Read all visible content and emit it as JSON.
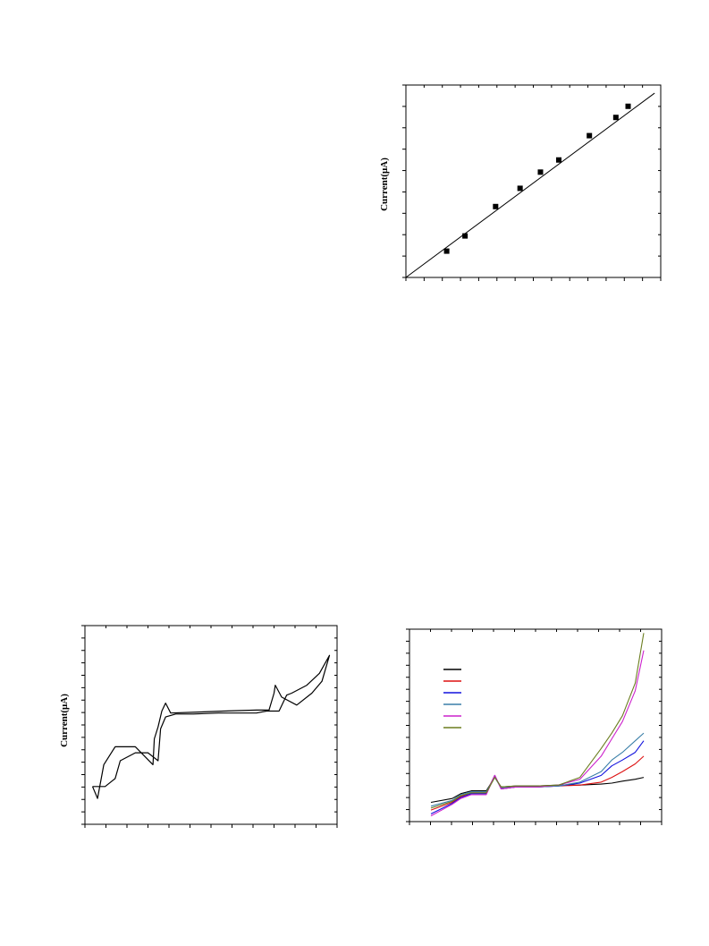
{
  "chart_data": [
    {
      "type": "scatter",
      "title": "",
      "xlabel": "",
      "ylabel": "Current(μA)",
      "xlim": [
        0,
        12.5
      ],
      "ylim": [
        0,
        9.5
      ],
      "grid": false,
      "points": {
        "x": [
          2,
          2.9,
          4.4,
          5.6,
          6.6,
          7.5,
          9,
          10.3,
          10.9
        ],
        "y": [
          1.3,
          2.05,
          3.5,
          4.4,
          5.2,
          5.8,
          7,
          7.9,
          8.45
        ]
      },
      "fit_line": {
        "x": [
          0,
          12.2
        ],
        "y": [
          0,
          9.1
        ]
      },
      "marker_color": "#000000"
    },
    {
      "type": "line",
      "title": "",
      "xlabel": "",
      "ylabel": "Current(μA)",
      "xlim": [
        0,
        10
      ],
      "ylim": [
        0,
        10
      ],
      "grid": false,
      "series": [
        {
          "color": "#000000",
          "forward": {
            "x": [
              0.3,
              0.8,
              1.2,
              1.4,
              2.0,
              2.5,
              2.9,
              3.0,
              3.2,
              3.6,
              3.85,
              4.3,
              5.3,
              6.5,
              6.8,
              7.2,
              7.7,
              8.0,
              8.2,
              8.8,
              9.3,
              9.7
            ],
            "y": [
              1.9,
              1.9,
              2.3,
              3.2,
              3.6,
              3.6,
              3.2,
              4.8,
              5.4,
              5.55,
              5.55,
              5.55,
              5.6,
              5.6,
              5.6,
              5.7,
              5.7,
              6.5,
              6.6,
              7.0,
              7.6,
              8.5
            ]
          },
          "reverse": {
            "x": [
              9.7,
              9.4,
              9.0,
              8.4,
              7.8,
              7.55,
              7.5,
              7.3,
              6.8,
              5.5,
              4.5,
              3.4,
              3.2,
              3.05,
              2.9,
              2.75,
              2.7,
              2.0,
              1.2,
              0.75,
              0.5,
              0.3
            ],
            "y": [
              8.5,
              7.2,
              6.6,
              6.0,
              6.4,
              7.0,
              6.6,
              5.75,
              5.75,
              5.7,
              5.65,
              5.6,
              6.1,
              5.7,
              4.9,
              4.3,
              3.0,
              3.9,
              3.9,
              3.0,
              1.3,
              1.9
            ]
          }
        }
      ]
    },
    {
      "type": "line",
      "title": "",
      "xlabel": "",
      "ylabel": "",
      "xlim": [
        0,
        10
      ],
      "ylim": [
        0,
        10
      ],
      "grid": false,
      "legend": "top-left",
      "series": [
        {
          "color": "#000000",
          "x": [
            0,
            1,
            1.4,
            1.9,
            2.6,
            3.0,
            3.3,
            4,
            5,
            6,
            7,
            8,
            8.5,
            9,
            9.6,
            10
          ],
          "y": [
            1.0,
            1.2,
            1.45,
            1.6,
            1.6,
            2.3,
            1.8,
            1.85,
            1.85,
            1.9,
            1.9,
            1.95,
            2.0,
            2.1,
            2.2,
            2.3
          ]
        },
        {
          "color": "#dd1111",
          "x": [
            0,
            1,
            1.4,
            1.9,
            2.6,
            3.0,
            3.3,
            4,
            5,
            6,
            7,
            8,
            8.5,
            9,
            9.6,
            10
          ],
          "y": [
            0.6,
            1.0,
            1.3,
            1.5,
            1.5,
            2.4,
            1.7,
            1.8,
            1.8,
            1.85,
            1.9,
            2.05,
            2.3,
            2.6,
            3.0,
            3.4
          ]
        },
        {
          "color": "#1111dd",
          "x": [
            0,
            1,
            1.4,
            1.9,
            2.6,
            3.0,
            3.3,
            4,
            5,
            6,
            7,
            8,
            8.5,
            9,
            9.6,
            10
          ],
          "y": [
            0.4,
            0.95,
            1.25,
            1.45,
            1.45,
            2.4,
            1.7,
            1.8,
            1.8,
            1.85,
            2.0,
            2.4,
            2.9,
            3.2,
            3.6,
            4.2
          ]
        },
        {
          "color": "#3a7fa8",
          "x": [
            0,
            1,
            1.4,
            1.9,
            2.6,
            3.0,
            3.3,
            4,
            5,
            6,
            7,
            8,
            8.5,
            9,
            9.6,
            10
          ],
          "y": [
            0.8,
            1.1,
            1.4,
            1.55,
            1.55,
            2.3,
            1.75,
            1.8,
            1.8,
            1.85,
            2.05,
            2.6,
            3.2,
            3.6,
            4.2,
            4.6
          ]
        },
        {
          "color": "#cc22cc",
          "x": [
            0,
            1,
            1.4,
            1.9,
            2.6,
            3.0,
            3.3,
            4,
            5,
            6,
            7,
            8,
            8.5,
            9,
            9.6,
            10
          ],
          "y": [
            0.3,
            0.9,
            1.2,
            1.4,
            1.4,
            2.4,
            1.7,
            1.8,
            1.8,
            1.9,
            2.2,
            3.4,
            4.3,
            5.2,
            6.8,
            8.9
          ]
        },
        {
          "color": "#6b7d1f",
          "x": [
            0,
            1,
            1.4,
            1.9,
            2.6,
            3.0,
            3.3,
            4,
            5,
            6,
            7,
            8,
            8.5,
            9,
            9.6,
            10
          ],
          "y": [
            0.7,
            1.05,
            1.35,
            1.5,
            1.5,
            2.3,
            1.8,
            1.85,
            1.85,
            1.9,
            2.3,
            3.8,
            4.6,
            5.5,
            7.2,
            9.8
          ]
        }
      ]
    }
  ]
}
